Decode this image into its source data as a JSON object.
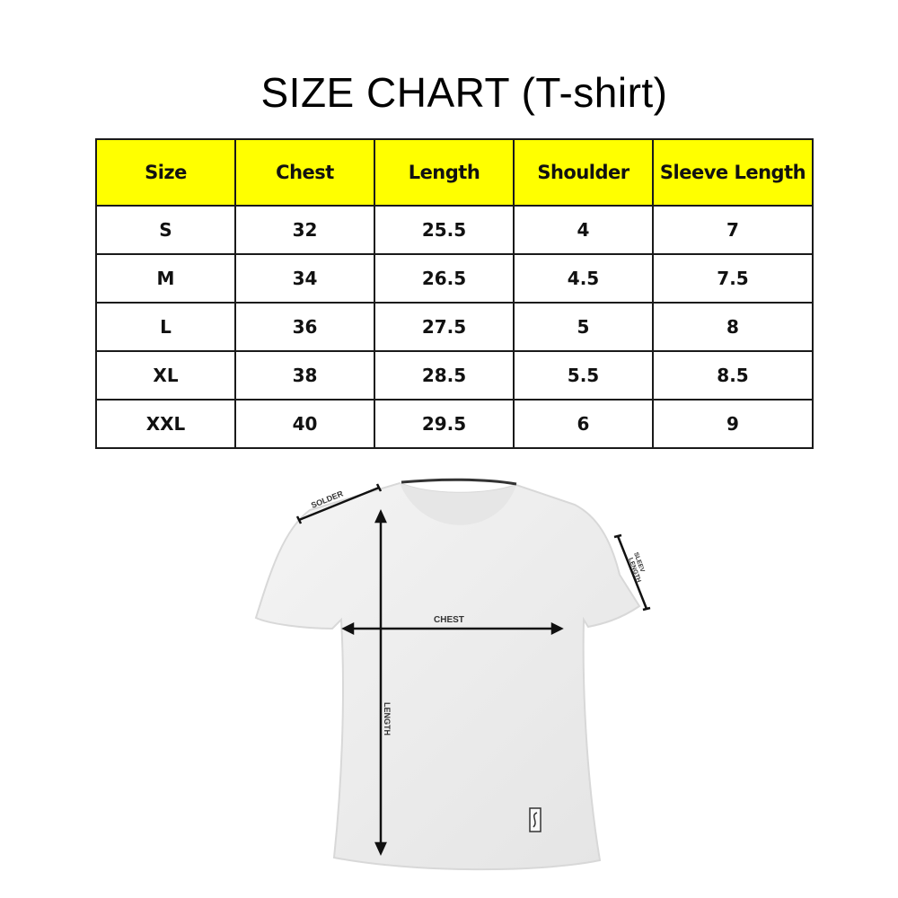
{
  "title": "SIZE CHART (T-shirt)",
  "table": {
    "headers": [
      "Size",
      "Chest",
      "Length",
      "Shoulder",
      "Sleeve Length"
    ],
    "rows": [
      [
        "S",
        "32",
        "25.5",
        "4",
        "7"
      ],
      [
        "M",
        "34",
        "26.5",
        "4.5",
        "7.5"
      ],
      [
        "L",
        "36",
        "27.5",
        "5",
        "8"
      ],
      [
        "XL",
        "38",
        "28.5",
        "5.5",
        "8.5"
      ],
      [
        "XXL",
        "40",
        "29.5",
        "6",
        "9"
      ]
    ],
    "header_color": "#ffff00"
  },
  "diagram": {
    "labels": {
      "shoulder": "SOLDER",
      "sleeve_line1": "SLEEV",
      "sleeve_line2": "LENGTH",
      "chest": "CHEST",
      "length": "LENGTH"
    }
  }
}
